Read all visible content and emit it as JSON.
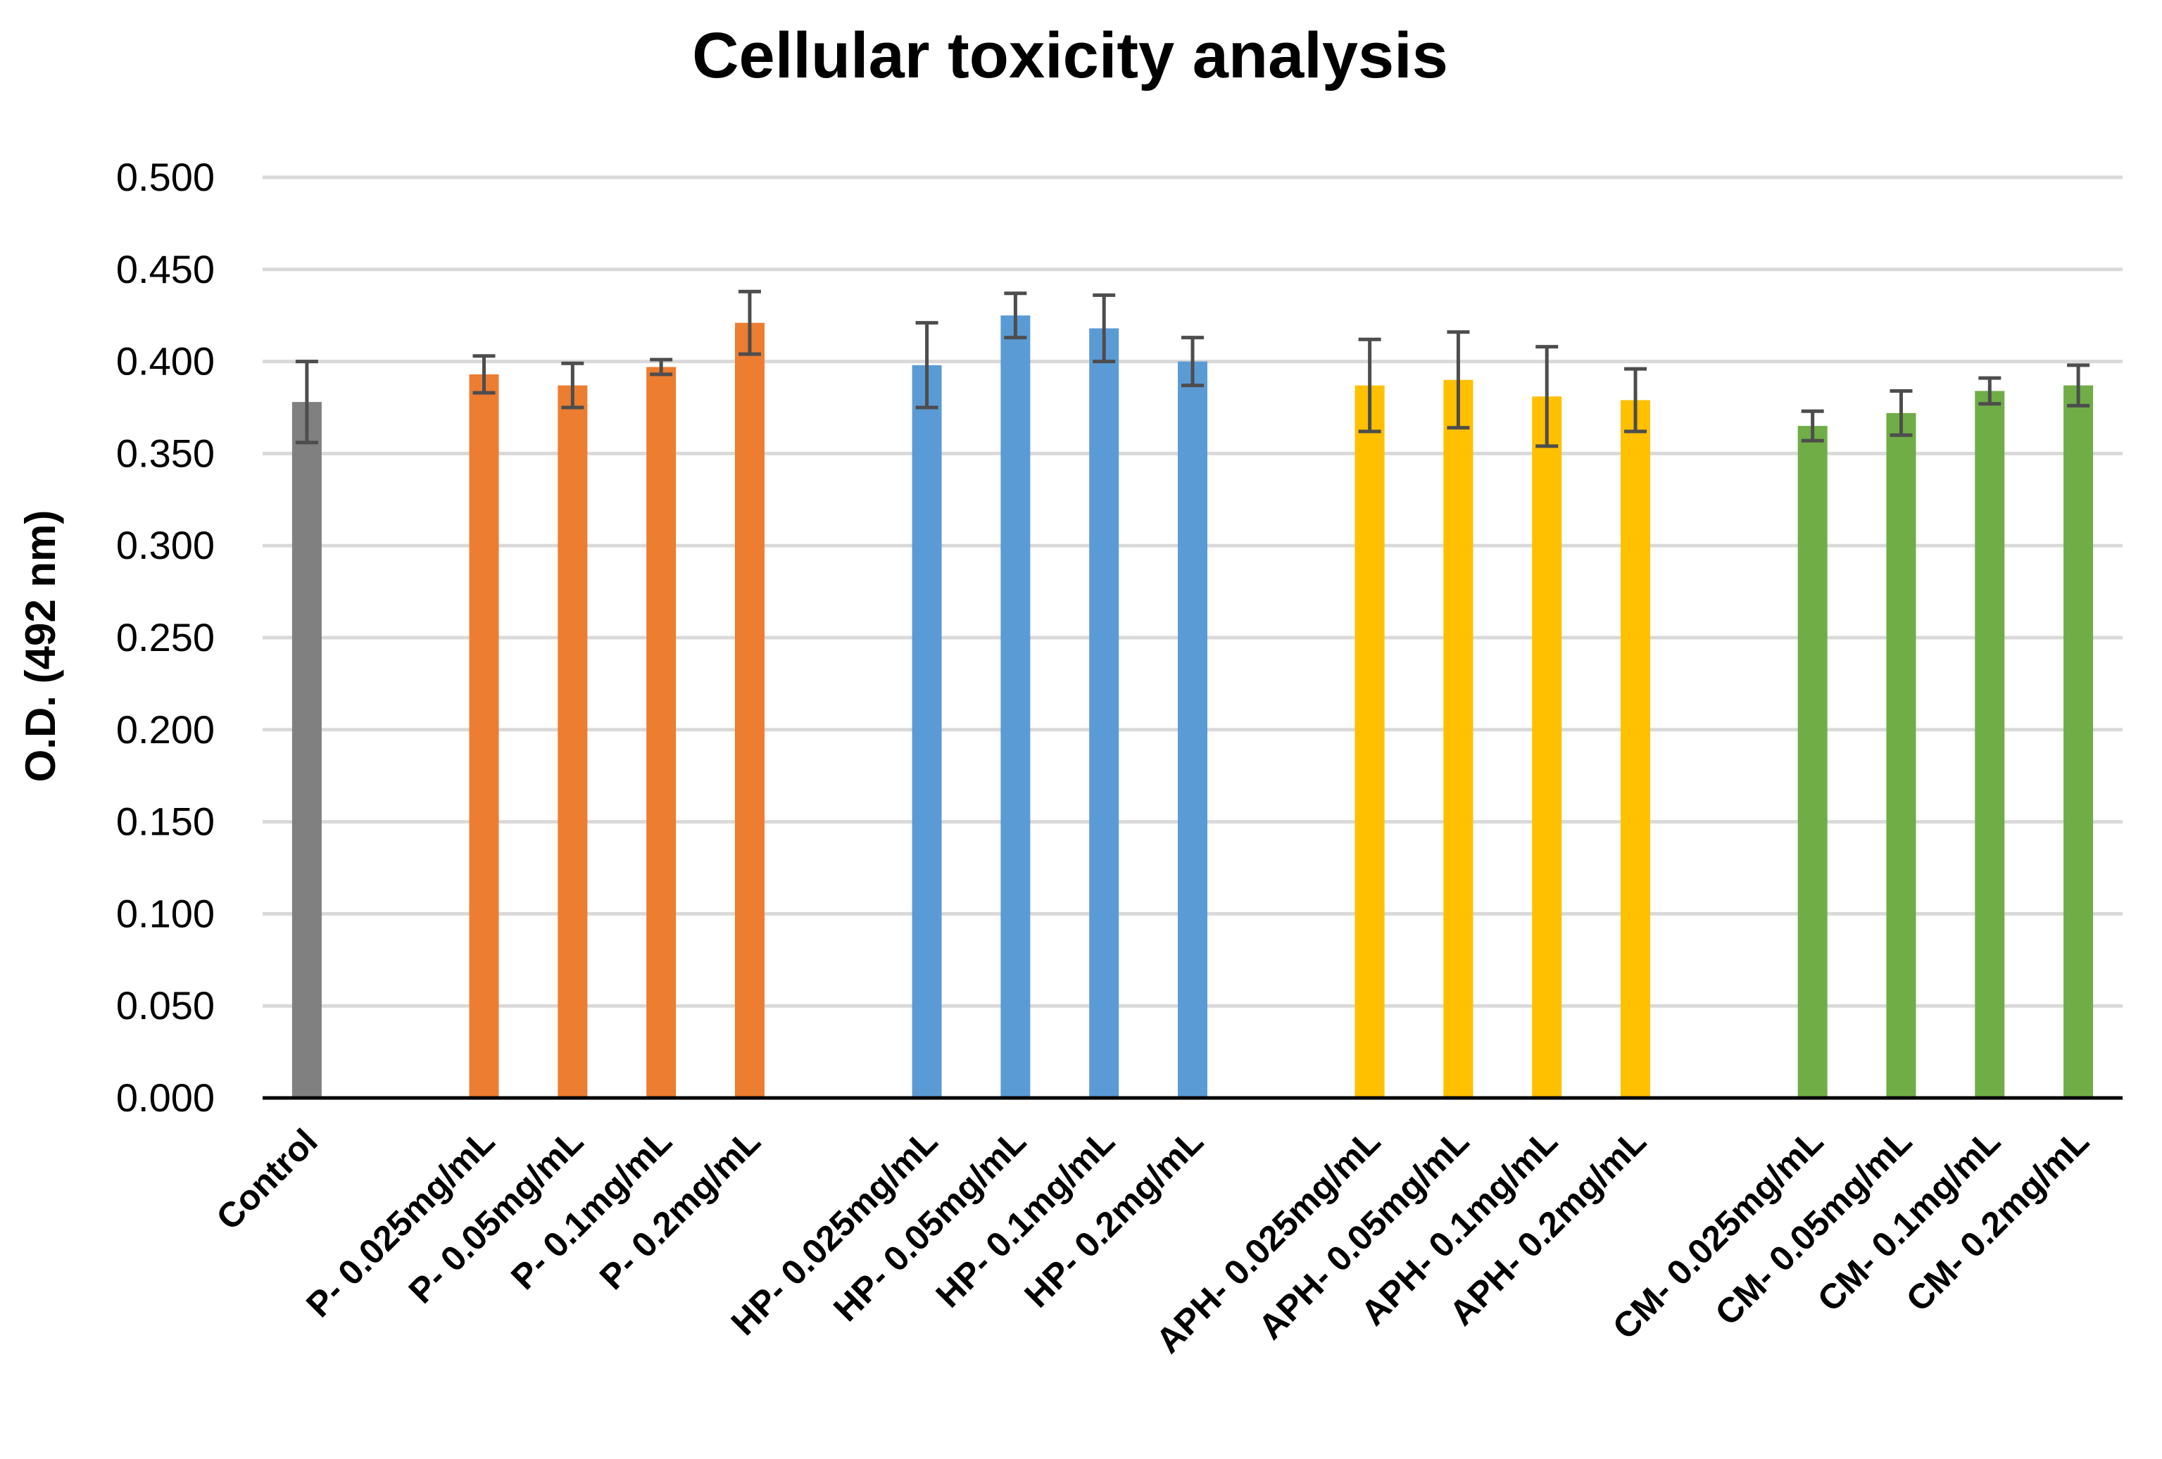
{
  "chart_data": {
    "type": "bar",
    "title": "Cellular toxicity analysis",
    "xlabel": "",
    "ylabel": "O.D. (492 nm)",
    "ylim": [
      0,
      0.5
    ],
    "yticks": [
      "0.000",
      "0.050",
      "0.100",
      "0.150",
      "0.200",
      "0.250",
      "0.300",
      "0.350",
      "0.400",
      "0.450",
      "0.500"
    ],
    "grid": true,
    "groups": [
      {
        "name": "Control",
        "color": "#808080",
        "bars": [
          {
            "label": "Control",
            "value": 0.378,
            "error": 0.022
          }
        ]
      },
      {
        "name": "P",
        "color": "#ED7D31",
        "bars": [
          {
            "label": "P- 0.025mg/mL",
            "value": 0.393,
            "error": 0.01
          },
          {
            "label": "P- 0.05mg/mL",
            "value": 0.387,
            "error": 0.012
          },
          {
            "label": "P- 0.1mg/mL",
            "value": 0.397,
            "error": 0.004
          },
          {
            "label": "P- 0.2mg/mL",
            "value": 0.421,
            "error": 0.017
          }
        ]
      },
      {
        "name": "HP",
        "color": "#5B9BD5",
        "bars": [
          {
            "label": "HP- 0.025mg/mL",
            "value": 0.398,
            "error": 0.023
          },
          {
            "label": "HP- 0.05mg/mL",
            "value": 0.425,
            "error": 0.012
          },
          {
            "label": "HP- 0.1mg/mL",
            "value": 0.418,
            "error": 0.018
          },
          {
            "label": "HP- 0.2mg/mL",
            "value": 0.4,
            "error": 0.013
          }
        ]
      },
      {
        "name": "APH",
        "color": "#FFC000",
        "bars": [
          {
            "label": "APH- 0.025mg/mL",
            "value": 0.387,
            "error": 0.025
          },
          {
            "label": "APH- 0.05mg/mL",
            "value": 0.39,
            "error": 0.026
          },
          {
            "label": "APH- 0.1mg/mL",
            "value": 0.381,
            "error": 0.027
          },
          {
            "label": "APH- 0.2mg/mL",
            "value": 0.379,
            "error": 0.017
          }
        ]
      },
      {
        "name": "CM",
        "color": "#70AD47",
        "bars": [
          {
            "label": "CM- 0.025mg/mL",
            "value": 0.365,
            "error": 0.008
          },
          {
            "label": "CM- 0.05mg/mL",
            "value": 0.372,
            "error": 0.012
          },
          {
            "label": "CM- 0.1mg/mL",
            "value": 0.384,
            "error": 0.007
          },
          {
            "label": "CM- 0.2mg/mL",
            "value": 0.387,
            "error": 0.011
          }
        ]
      }
    ]
  }
}
